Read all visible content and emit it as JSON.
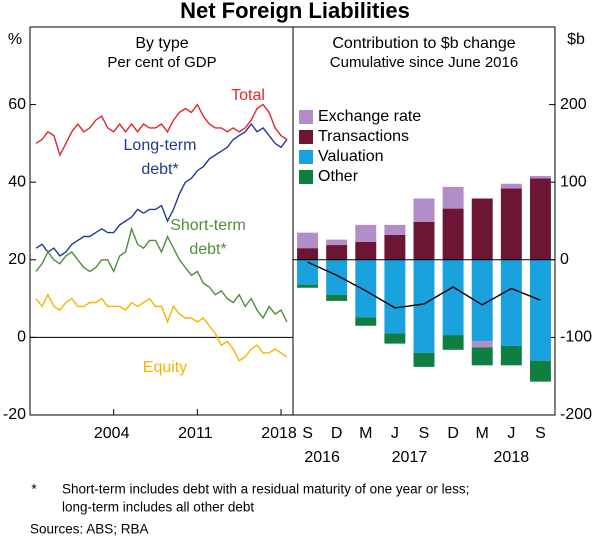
{
  "title": "Net Foreign Liabilities",
  "footnote_mark": "*",
  "footnote_lines": [
    "Short-term includes debt with a residual maturity of one year or less;",
    "long-term includes all other debt"
  ],
  "source": "Sources: ABS; RBA",
  "chart_data": [
    {
      "type": "line",
      "title": "By type",
      "subtitle": "Per cent of GDP",
      "y_unit": "%",
      "xlim": [
        1997,
        2019
      ],
      "xticks": [
        2004,
        2011,
        2018
      ],
      "ylim": [
        -20,
        80
      ],
      "yticks": [
        -20,
        0,
        20,
        40,
        60
      ],
      "x": [
        1997.5,
        1998,
        1998.5,
        1999,
        1999.5,
        2000,
        2000.5,
        2001,
        2001.5,
        2002,
        2002.5,
        2003,
        2003.5,
        2004,
        2004.5,
        2005,
        2005.5,
        2006,
        2006.5,
        2007,
        2007.5,
        2008,
        2008.5,
        2009,
        2009.5,
        2010,
        2010.5,
        2011,
        2011.5,
        2012,
        2012.5,
        2013,
        2013.5,
        2014,
        2014.5,
        2015,
        2015.5,
        2016,
        2016.5,
        2017,
        2017.5,
        2018,
        2018.5
      ],
      "series": [
        {
          "label_lines": [
            "Total"
          ],
          "color": "#e1262d",
          "values": [
            50,
            51,
            53,
            52,
            47,
            50,
            53,
            55,
            53,
            54,
            56,
            57,
            54,
            53,
            55,
            53,
            55,
            53,
            55,
            54,
            54,
            55,
            53,
            56,
            58,
            59,
            58,
            60,
            57,
            55,
            54,
            54,
            53,
            54,
            53,
            54,
            56,
            59,
            60,
            58,
            54,
            52,
            51
          ]
        },
        {
          "label_lines": [
            "Long-term",
            "debt*"
          ],
          "color": "#223a8f",
          "values": [
            23,
            24,
            22,
            23,
            21,
            22,
            24,
            25,
            26,
            26,
            27,
            28,
            27,
            27,
            29,
            30,
            31,
            33,
            32,
            33,
            33,
            34,
            30,
            33,
            37,
            40,
            41,
            43,
            44,
            46,
            47,
            48,
            49,
            51,
            52,
            53,
            55,
            53,
            54,
            52,
            50,
            49,
            51
          ]
        },
        {
          "label_lines": [
            "Short-term",
            "debt*"
          ],
          "color": "#4f8f3b",
          "values": [
            17,
            19,
            22,
            20,
            19,
            21,
            22,
            20,
            18,
            17,
            18,
            20,
            20,
            17,
            21,
            22,
            28,
            24,
            23,
            25,
            25,
            22,
            26,
            23,
            20,
            18,
            16,
            17,
            14,
            13,
            11,
            12,
            10,
            9,
            11,
            8,
            10,
            7,
            5,
            8,
            6,
            7,
            4
          ]
        },
        {
          "label_lines": [
            "Equity"
          ],
          "color": "#f4b400",
          "values": [
            10,
            8,
            11,
            8,
            7,
            9,
            10,
            8,
            8,
            9,
            9,
            10,
            8,
            8,
            8,
            7,
            9,
            8,
            9,
            10,
            8,
            8,
            4,
            8,
            6,
            5,
            5,
            4,
            5,
            3,
            1,
            -2,
            -1,
            -3,
            -6,
            -5,
            -3,
            -2,
            -4,
            -4,
            -3,
            -4,
            -5
          ]
        }
      ]
    },
    {
      "type": "bar",
      "stacked": true,
      "title": "Contribution to $b change",
      "subtitle": "Cumulative since June 2016",
      "y_unit": "$b",
      "categories": [
        "S",
        "D",
        "M",
        "J",
        "S",
        "D",
        "M",
        "J",
        "S"
      ],
      "year_groups": [
        {
          "label": "2016",
          "span": 2
        },
        {
          "label": "2017",
          "span": 4
        },
        {
          "label": "2018",
          "span": 3
        }
      ],
      "ylim": [
        -200,
        300
      ],
      "yticks": [
        -200,
        -100,
        0,
        100,
        200
      ],
      "series": [
        {
          "name": "Exchange rate",
          "color": "#b38dc9",
          "values": [
            20,
            7,
            22,
            13,
            30,
            28,
            -8,
            6,
            3
          ]
        },
        {
          "name": "Transactions",
          "color": "#6d1535",
          "values": [
            15,
            19,
            23,
            32,
            49,
            66,
            79,
            92,
            105
          ]
        },
        {
          "name": "Valuation",
          "color": "#19a2de",
          "values": [
            -32,
            -45,
            -74,
            -95,
            -120,
            -97,
            -105,
            -111,
            -130
          ]
        },
        {
          "name": "Other",
          "color": "#0e7f40",
          "values": [
            -4,
            -8,
            -11,
            -13,
            -18,
            -19,
            -23,
            -25,
            -27
          ]
        }
      ],
      "line": {
        "color": "#000000",
        "values": [
          -3,
          -20,
          -40,
          -62,
          -57,
          -35,
          -58,
          -37,
          -52
        ]
      }
    }
  ]
}
